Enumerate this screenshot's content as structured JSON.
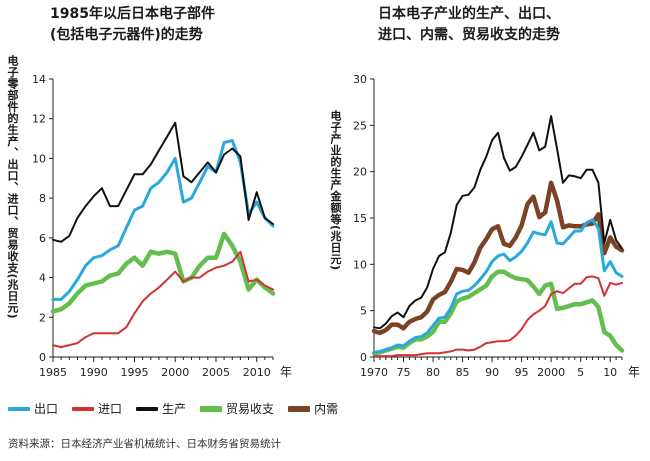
{
  "colors": {
    "export": "#2aa8dc",
    "import": "#d23232",
    "production": "#111111",
    "trade_balance": "#63bd4f",
    "domestic_demand": "#7a4424"
  },
  "legend": [
    {
      "label": "出口",
      "key": "export"
    },
    {
      "label": "进口",
      "key": "import"
    },
    {
      "label": "生产",
      "key": "production"
    },
    {
      "label": "贸易收支",
      "key": "trade_balance"
    },
    {
      "label": "内需",
      "key": "domestic_demand"
    }
  ],
  "source": "资料来源：日本经济产业省机械统计、日本财务省贸易统计",
  "chart_data": [
    {
      "type": "line",
      "title": "1985年以后日本电子部件\n(包括电子元器件)的走势",
      "ylabel": "电子零部件的生产、出口、进口、贸易收支(兆日元)",
      "xunit": "年",
      "xlim": [
        1985,
        2012
      ],
      "ylim": [
        0,
        14
      ],
      "yticks": [
        0,
        2,
        4,
        6,
        8,
        10,
        12,
        14
      ],
      "xticks": [
        1985,
        1990,
        1995,
        2000,
        2005,
        2010
      ],
      "xticklabels": [
        "1985",
        "1990",
        "1995",
        "2000",
        "2005",
        "2010"
      ],
      "series": [
        {
          "name": "出口",
          "key": "export",
          "x": [
            1985,
            1986,
            1987,
            1988,
            1989,
            1990,
            1991,
            1992,
            1993,
            1994,
            1995,
            1996,
            1997,
            1998,
            1999,
            2000,
            2001,
            2002,
            2003,
            2004,
            2005,
            2006,
            2007,
            2008,
            2009,
            2010,
            2011,
            2012
          ],
          "y": [
            2.9,
            2.9,
            3.3,
            3.9,
            4.6,
            5.0,
            5.1,
            5.4,
            5.6,
            6.5,
            7.4,
            7.6,
            8.5,
            8.8,
            9.3,
            10.0,
            7.8,
            8.0,
            8.8,
            9.6,
            9.3,
            10.8,
            10.9,
            9.8,
            7.2,
            7.8,
            7.0,
            6.6
          ]
        },
        {
          "name": "进口",
          "key": "import",
          "x": [
            1985,
            1986,
            1987,
            1988,
            1989,
            1990,
            1991,
            1992,
            1993,
            1994,
            1995,
            1996,
            1997,
            1998,
            1999,
            2000,
            2001,
            2002,
            2003,
            2004,
            2005,
            2006,
            2007,
            2008,
            2009,
            2010,
            2011,
            2012
          ],
          "y": [
            0.6,
            0.5,
            0.6,
            0.7,
            1.0,
            1.2,
            1.2,
            1.2,
            1.2,
            1.5,
            2.2,
            2.8,
            3.2,
            3.5,
            3.9,
            4.3,
            3.8,
            4.0,
            4.0,
            4.3,
            4.5,
            4.6,
            4.8,
            5.3,
            3.8,
            3.9,
            3.6,
            3.4
          ]
        },
        {
          "name": "生产",
          "key": "production",
          "x": [
            1985,
            1986,
            1987,
            1988,
            1989,
            1990,
            1991,
            1992,
            1993,
            1994,
            1995,
            1996,
            1997,
            1998,
            1999,
            2000,
            2001,
            2002,
            2003,
            2004,
            2005,
            2006,
            2007,
            2008,
            2009,
            2010,
            2011,
            2012
          ],
          "y": [
            5.9,
            5.8,
            6.1,
            7.0,
            7.6,
            8.1,
            8.5,
            7.6,
            7.6,
            8.4,
            9.2,
            9.2,
            9.7,
            10.4,
            11.1,
            11.8,
            9.1,
            8.8,
            9.3,
            9.8,
            9.3,
            10.2,
            10.5,
            10.1,
            6.9,
            8.3,
            7.0,
            6.7
          ]
        },
        {
          "name": "贸易收支",
          "key": "trade_balance",
          "x": [
            1985,
            1986,
            1987,
            1988,
            1989,
            1990,
            1991,
            1992,
            1993,
            1994,
            1995,
            1996,
            1997,
            1998,
            1999,
            2000,
            2001,
            2002,
            2003,
            2004,
            2005,
            2006,
            2007,
            2008,
            2009,
            2010,
            2011,
            2012
          ],
          "y": [
            2.3,
            2.4,
            2.7,
            3.2,
            3.6,
            3.7,
            3.8,
            4.1,
            4.2,
            4.7,
            5.0,
            4.6,
            5.3,
            5.2,
            5.3,
            5.2,
            3.8,
            4.0,
            4.6,
            5.0,
            5.0,
            6.2,
            5.6,
            4.8,
            3.4,
            3.9,
            3.5,
            3.2
          ]
        }
      ]
    },
    {
      "type": "line",
      "title": "日本电子产业的生产、出口、\n进口、内需、贸易收支的走势",
      "ylabel": "电子产业的生产金额等(兆日元)",
      "xunit": "年",
      "xlim": [
        1970,
        2012
      ],
      "ylim": [
        0,
        30
      ],
      "yticks": [
        0,
        5,
        10,
        15,
        20,
        25,
        30
      ],
      "xticks": [
        1970,
        1975,
        1980,
        1985,
        1990,
        1995,
        2000,
        2005,
        2010
      ],
      "xticklabels": [
        "1970",
        "75",
        "80",
        "85",
        "90",
        "95",
        "2000",
        "5",
        "10"
      ],
      "series": [
        {
          "name": "出口",
          "key": "export",
          "x": [
            1970,
            1971,
            1972,
            1973,
            1974,
            1975,
            1976,
            1977,
            1978,
            1979,
            1980,
            1981,
            1982,
            1983,
            1984,
            1985,
            1986,
            1987,
            1988,
            1989,
            1990,
            1991,
            1992,
            1993,
            1994,
            1995,
            1996,
            1997,
            1998,
            1999,
            2000,
            2001,
            2002,
            2003,
            2004,
            2005,
            2006,
            2007,
            2008,
            2009,
            2010,
            2011,
            2012
          ],
          "y": [
            0.5,
            0.6,
            0.8,
            1.0,
            1.3,
            1.2,
            1.7,
            2.1,
            2.2,
            2.6,
            3.4,
            4.2,
            4.3,
            5.3,
            6.8,
            7.1,
            7.2,
            7.7,
            8.4,
            9.2,
            10.3,
            10.9,
            11.1,
            10.4,
            10.8,
            11.4,
            12.3,
            13.5,
            13.3,
            13.2,
            14.6,
            12.3,
            12.2,
            12.9,
            13.6,
            13.6,
            14.5,
            14.8,
            13.9,
            9.3,
            10.3,
            9.1,
            8.7
          ]
        },
        {
          "name": "进口",
          "key": "import",
          "x": [
            1970,
            1971,
            1972,
            1973,
            1974,
            1975,
            1976,
            1977,
            1978,
            1979,
            1980,
            1981,
            1982,
            1983,
            1984,
            1985,
            1986,
            1987,
            1988,
            1989,
            1990,
            1991,
            1992,
            1993,
            1994,
            1995,
            1996,
            1997,
            1998,
            1999,
            2000,
            2001,
            2002,
            2003,
            2004,
            2005,
            2006,
            2007,
            2008,
            2009,
            2010,
            2011,
            2012
          ],
          "y": [
            0.1,
            0.1,
            0.1,
            0.1,
            0.2,
            0.2,
            0.2,
            0.2,
            0.3,
            0.4,
            0.4,
            0.4,
            0.5,
            0.6,
            0.8,
            0.8,
            0.7,
            0.8,
            1.1,
            1.5,
            1.6,
            1.7,
            1.7,
            1.8,
            2.3,
            3.0,
            4.0,
            4.6,
            5.0,
            5.5,
            6.8,
            7.1,
            6.9,
            7.4,
            7.9,
            7.9,
            8.6,
            8.7,
            8.5,
            6.6,
            8.0,
            7.8,
            8.0
          ]
        },
        {
          "name": "生产",
          "key": "production",
          "x": [
            1970,
            1971,
            1972,
            1973,
            1974,
            1975,
            1976,
            1977,
            1978,
            1979,
            1980,
            1981,
            1982,
            1983,
            1984,
            1985,
            1986,
            1987,
            1988,
            1989,
            1990,
            1991,
            1992,
            1993,
            1994,
            1995,
            1996,
            1997,
            1998,
            1999,
            2000,
            2001,
            2002,
            2003,
            2004,
            2005,
            2006,
            2007,
            2008,
            2009,
            2010,
            2011,
            2012
          ],
          "y": [
            3.2,
            3.1,
            3.6,
            4.4,
            4.8,
            4.3,
            5.5,
            6.1,
            6.4,
            7.5,
            9.5,
            10.9,
            11.3,
            13.4,
            16.4,
            17.4,
            17.5,
            18.3,
            20.2,
            21.6,
            23.4,
            24.2,
            21.5,
            20.1,
            20.5,
            21.6,
            22.9,
            24.2,
            22.3,
            22.7,
            26.0,
            22.5,
            18.8,
            19.6,
            19.5,
            19.3,
            20.2,
            20.2,
            18.8,
            12.3,
            14.8,
            12.6,
            11.7
          ]
        },
        {
          "name": "贸易收支",
          "key": "trade_balance",
          "x": [
            1970,
            1971,
            1972,
            1973,
            1974,
            1975,
            1976,
            1977,
            1978,
            1979,
            1980,
            1981,
            1982,
            1983,
            1984,
            1985,
            1986,
            1987,
            1988,
            1989,
            1990,
            1991,
            1992,
            1993,
            1994,
            1995,
            1996,
            1997,
            1998,
            1999,
            2000,
            2001,
            2002,
            2003,
            2004,
            2005,
            2006,
            2007,
            2008,
            2009,
            2010,
            2011,
            2012
          ],
          "y": [
            0.4,
            0.5,
            0.7,
            0.9,
            1.1,
            1.0,
            1.5,
            1.9,
            1.9,
            2.2,
            2.7,
            3.8,
            3.8,
            4.7,
            6.0,
            6.3,
            6.5,
            6.9,
            7.3,
            7.7,
            8.7,
            9.2,
            9.2,
            8.8,
            8.5,
            8.4,
            8.3,
            7.6,
            6.8,
            7.7,
            7.9,
            5.2,
            5.3,
            5.5,
            5.7,
            5.7,
            5.9,
            6.1,
            5.4,
            2.7,
            2.3,
            1.3,
            0.7
          ]
        },
        {
          "name": "内需",
          "key": "domestic_demand",
          "x": [
            1970,
            1971,
            1972,
            1973,
            1974,
            1975,
            1976,
            1977,
            1978,
            1979,
            1980,
            1981,
            1982,
            1983,
            1984,
            1985,
            1986,
            1987,
            1988,
            1989,
            1990,
            1991,
            1992,
            1993,
            1994,
            1995,
            1996,
            1997,
            1998,
            1999,
            2000,
            2001,
            2002,
            2003,
            2004,
            2005,
            2006,
            2007,
            2008,
            2009,
            2010,
            2011,
            2012
          ],
          "y": [
            2.8,
            2.6,
            2.9,
            3.5,
            3.5,
            3.1,
            3.8,
            4.1,
            4.3,
            4.9,
            6.2,
            6.7,
            7.0,
            8.1,
            9.5,
            9.4,
            9.1,
            10.2,
            11.8,
            12.7,
            13.8,
            14.1,
            12.2,
            12.0,
            12.9,
            14.2,
            16.5,
            17.3,
            15.1,
            15.6,
            18.8,
            16.9,
            14.0,
            14.2,
            14.1,
            14.1,
            14.3,
            14.4,
            15.4,
            11.2,
            12.9,
            11.9,
            11.5
          ]
        }
      ]
    }
  ]
}
